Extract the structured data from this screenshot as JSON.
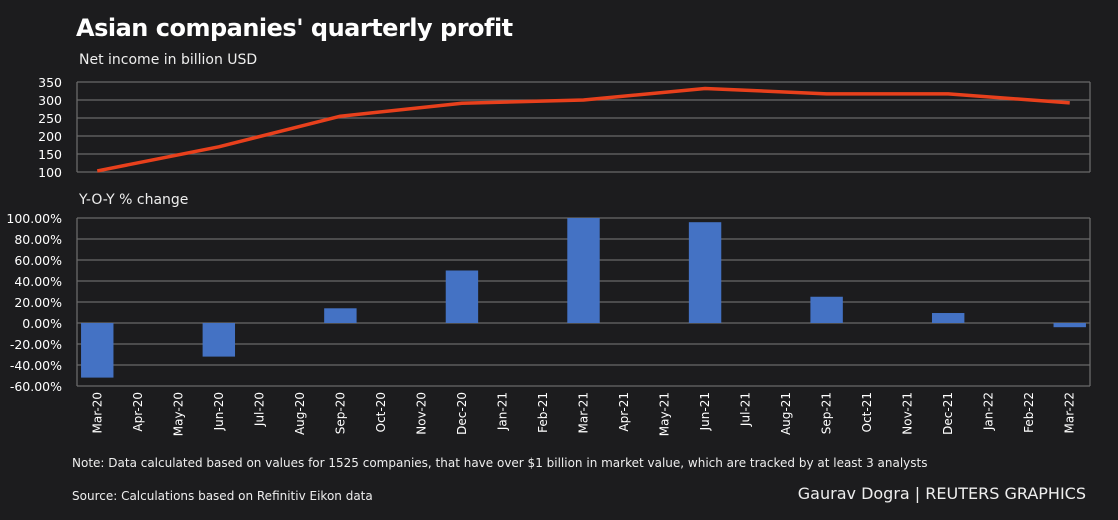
{
  "title": "Asian companies' quarterly profit",
  "note": "Note: Data calculated based on values for 1525 companies, that have over $1 billion in market value, which are tracked by at least 3 analysts",
  "source": "Source: Calculations based on Refinitiv Eikon data",
  "credit": "Gaurav Dogra | REUTERS GRAPHICS",
  "chart_data": [
    {
      "type": "line",
      "title": "Net income in billion USD",
      "x": [
        "Mar-20",
        "Jun-20",
        "Sep-20",
        "Dec-20",
        "Mar-21",
        "Jun-21",
        "Sep-21",
        "Dec-21",
        "Mar-22"
      ],
      "values": [
        103,
        170,
        255,
        291,
        300,
        332,
        317,
        317,
        292
      ],
      "ylim": [
        100,
        350
      ],
      "yticks": [
        100,
        150,
        200,
        250,
        300,
        350
      ],
      "color": "#e8401c",
      "grid": true
    },
    {
      "type": "bar",
      "title": "Y-O-Y % change",
      "categories": [
        "Mar-20",
        "Apr-20",
        "May-20",
        "Jun-20",
        "Jul-20",
        "Aug-20",
        "Sep-20",
        "Oct-20",
        "Nov-20",
        "Dec-20",
        "Jan-21",
        "Feb-21",
        "Mar-21",
        "Apr-21",
        "May-21",
        "Jun-21",
        "Jul-21",
        "Aug-21",
        "Sep-21",
        "Oct-21",
        "Nov-21",
        "Dec-21",
        "Jan-22",
        "Feb-22",
        "Mar-22"
      ],
      "values": [
        -52,
        null,
        null,
        -32,
        null,
        null,
        14,
        null,
        null,
        50,
        null,
        null,
        100,
        null,
        null,
        96,
        null,
        null,
        25,
        null,
        null,
        9.5,
        null,
        null,
        -4
      ],
      "ylim": [
        -60,
        100
      ],
      "yticks": [
        "100.00%",
        "80.00%",
        "60.00%",
        "40.00%",
        "20.00%",
        "0.00%",
        "-20.00%",
        "-40.00%",
        "-60.00%"
      ],
      "color": "#4472c4",
      "grid": true
    }
  ]
}
